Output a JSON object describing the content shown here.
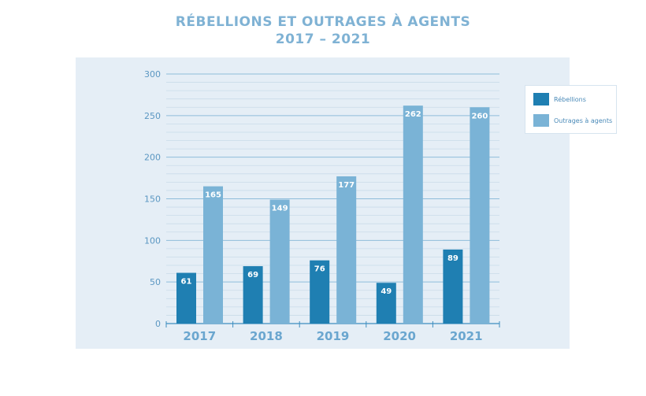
{
  "chart_data": {
    "type": "bar",
    "title_line1": "RÉBELLIONS ET OUTRAGES À AGENTS",
    "title_line2": "2017 – 2021",
    "categories": [
      "2017",
      "2018",
      "2019",
      "2020",
      "2021"
    ],
    "series": [
      {
        "name": "Rébellions",
        "color": "#1f7fb2",
        "values": [
          61,
          69,
          76,
          49,
          89
        ]
      },
      {
        "name": "Outrages à agents",
        "color": "#7ab3d6",
        "values": [
          165,
          149,
          177,
          262,
          260
        ]
      }
    ],
    "yticks": [
      0,
      50,
      100,
      150,
      200,
      250,
      300
    ],
    "ylim": [
      0,
      300
    ],
    "minor_step": 10,
    "grid": true,
    "legend_position": "top-right"
  }
}
